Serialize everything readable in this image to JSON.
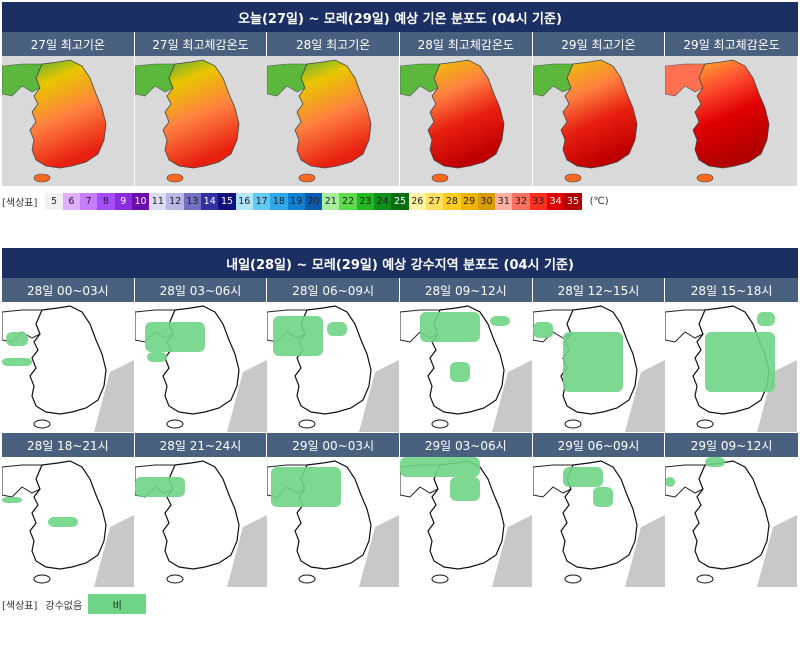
{
  "temp_section": {
    "title": "오늘(27일) ~ 모레(29일) 예상 기온 분포도 (04시 기준)",
    "panels": [
      {
        "label": "27일 최고기온",
        "heat": 1
      },
      {
        "label": "27일 최고체감온도",
        "heat": 1
      },
      {
        "label": "28일 최고기온",
        "heat": 1
      },
      {
        "label": "28일 최고체감온도",
        "heat": 2
      },
      {
        "label": "29일 최고기온",
        "heat": 2
      },
      {
        "label": "29일 최고체감온도",
        "heat": 3
      }
    ],
    "legend_label": "[색상표]",
    "legend_unit": "(℃)",
    "legend": [
      {
        "v": "5",
        "c": "#f2f2f2"
      },
      {
        "v": "6",
        "c": "#e0b0ff"
      },
      {
        "v": "7",
        "c": "#c77dff"
      },
      {
        "v": "8",
        "c": "#a64dff"
      },
      {
        "v": "9",
        "c": "#8a2be2"
      },
      {
        "v": "10",
        "c": "#6a0dad"
      },
      {
        "v": "11",
        "c": "#dcdcf5"
      },
      {
        "v": "12",
        "c": "#b8b8e8"
      },
      {
        "v": "13",
        "c": "#7070c0"
      },
      {
        "v": "14",
        "c": "#3030a0"
      },
      {
        "v": "15",
        "c": "#101080"
      },
      {
        "v": "16",
        "c": "#b3e5fc"
      },
      {
        "v": "17",
        "c": "#64c8f5"
      },
      {
        "v": "18",
        "c": "#2ea8e8"
      },
      {
        "v": "19",
        "c": "#1280d0"
      },
      {
        "v": "20",
        "c": "#0a5ab0"
      },
      {
        "v": "21",
        "c": "#a8f0a0"
      },
      {
        "v": "22",
        "c": "#5cdc4c"
      },
      {
        "v": "23",
        "c": "#22b822"
      },
      {
        "v": "24",
        "c": "#10901a"
      },
      {
        "v": "25",
        "c": "#066d10"
      },
      {
        "v": "26",
        "c": "#fff6a8"
      },
      {
        "v": "27",
        "c": "#ffe060"
      },
      {
        "v": "28",
        "c": "#ffcc20"
      },
      {
        "v": "29",
        "c": "#f0b400"
      },
      {
        "v": "30",
        "c": "#d89c00"
      },
      {
        "v": "31",
        "c": "#ffb0a0"
      },
      {
        "v": "32",
        "c": "#ff7060"
      },
      {
        "v": "33",
        "c": "#ff3020"
      },
      {
        "v": "34",
        "c": "#e00000"
      },
      {
        "v": "35",
        "c": "#b00000"
      }
    ]
  },
  "rain_section": {
    "title": "내일(28일) ~ 모레(29일) 예상 강수지역 분포도 (04시 기준)",
    "panels": [
      {
        "label": "28일 00~03시"
      },
      {
        "label": "28일 03~06시"
      },
      {
        "label": "28일 06~09시"
      },
      {
        "label": "28일 09~12시"
      },
      {
        "label": "28일 12~15시"
      },
      {
        "label": "28일 15~18시"
      },
      {
        "label": "28일 18~21시"
      },
      {
        "label": "28일 21~24시"
      },
      {
        "label": "29일 00~03시"
      },
      {
        "label": "29일 03~06시"
      },
      {
        "label": "29일 06~09시"
      },
      {
        "label": "29일 09~12시"
      }
    ],
    "legend_label": "[색상표]",
    "no_rain_label": "강수없음",
    "rain_label": "비",
    "rain_color": "#6fd486"
  }
}
